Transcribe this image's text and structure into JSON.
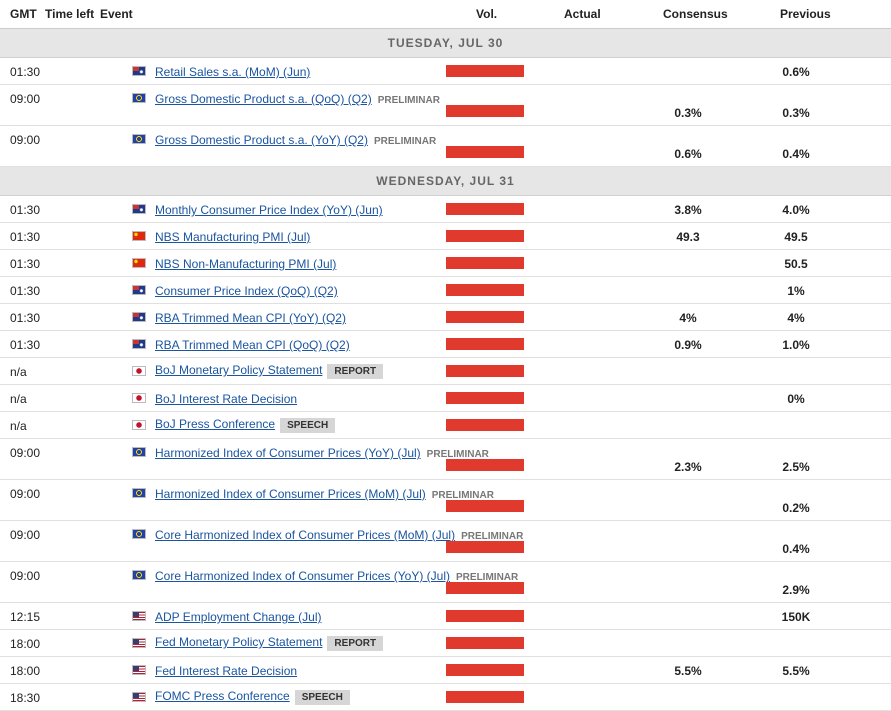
{
  "header": {
    "gmt": "GMT",
    "time_left": "Time left",
    "event": "Event",
    "vol": "Vol.",
    "actual": "Actual",
    "consensus": "Consensus",
    "previous": "Previous"
  },
  "days": [
    {
      "label": "TUESDAY, JUL 30",
      "rows": [
        {
          "time": "01:30",
          "event": "Retail Sales s.a. (MoM) (Jun)",
          "previous": "0.6%"
        },
        {
          "time": "09:00",
          "event": "Gross Domestic Product s.a. (QoQ) (Q2)",
          "tag": "PRELIMINAR",
          "consensus": "0.3%",
          "previous": "0.3%"
        },
        {
          "time": "09:00",
          "event": "Gross Domestic Product s.a. (YoY) (Q2)",
          "tag": "PRELIMINAR",
          "consensus": "0.6%",
          "previous": "0.4%"
        }
      ]
    },
    {
      "label": "WEDNESDAY, JUL 31",
      "rows": [
        {
          "time": "01:30",
          "event": "Monthly Consumer Price Index (YoY) (Jun)",
          "consensus": "3.8%",
          "previous": "4.0%"
        },
        {
          "time": "01:30",
          "event": "NBS Manufacturing PMI (Jul)",
          "consensus": "49.3",
          "previous": "49.5"
        },
        {
          "time": "01:30",
          "event": "NBS Non-Manufacturing PMI (Jul)",
          "previous": "50.5"
        },
        {
          "time": "01:30",
          "event": "Consumer Price Index (QoQ) (Q2)",
          "previous": "1%"
        },
        {
          "time": "01:30",
          "event": "RBA Trimmed Mean CPI (YoY) (Q2)",
          "consensus": "4%",
          "previous": "4%"
        },
        {
          "time": "01:30",
          "event": "RBA Trimmed Mean CPI (QoQ) (Q2)",
          "consensus": "0.9%",
          "previous": "1.0%"
        },
        {
          "time": "n/a",
          "event": "BoJ Monetary Policy Statement",
          "tag": "REPORT"
        },
        {
          "time": "n/a",
          "event": "BoJ Interest Rate Decision",
          "previous": "0%"
        },
        {
          "time": "n/a",
          "event": "BoJ Press Conference",
          "tag": "SPEECH"
        },
        {
          "time": "09:00",
          "event": "Harmonized Index of Consumer Prices (YoY) (Jul)",
          "tag": "PRELIMINAR",
          "consensus": "2.3%",
          "previous": "2.5%"
        },
        {
          "time": "09:00",
          "event": "Harmonized Index of Consumer Prices (MoM) (Jul)",
          "tag": "PRELIMINAR",
          "previous": "0.2%"
        },
        {
          "time": "09:00",
          "event": "Core Harmonized Index of Consumer Prices (MoM) (Jul)",
          "tag": "PRELIMINAR",
          "previous": "0.4%"
        },
        {
          "time": "09:00",
          "event": "Core Harmonized Index of Consumer Prices (YoY) (Jul)",
          "tag": "PRELIMINAR",
          "previous": "2.9%"
        },
        {
          "time": "12:15",
          "event": "ADP Employment Change (Jul)",
          "previous": "150K"
        },
        {
          "time": "18:00",
          "event": "Fed Monetary Policy Statement",
          "tag": "REPORT"
        },
        {
          "time": "18:00",
          "event": "Fed Interest Rate Decision",
          "consensus": "5.5%",
          "previous": "5.5%"
        },
        {
          "time": "18:30",
          "event": "FOMC Press Conference",
          "tag": "SPEECH"
        }
      ]
    }
  ]
}
